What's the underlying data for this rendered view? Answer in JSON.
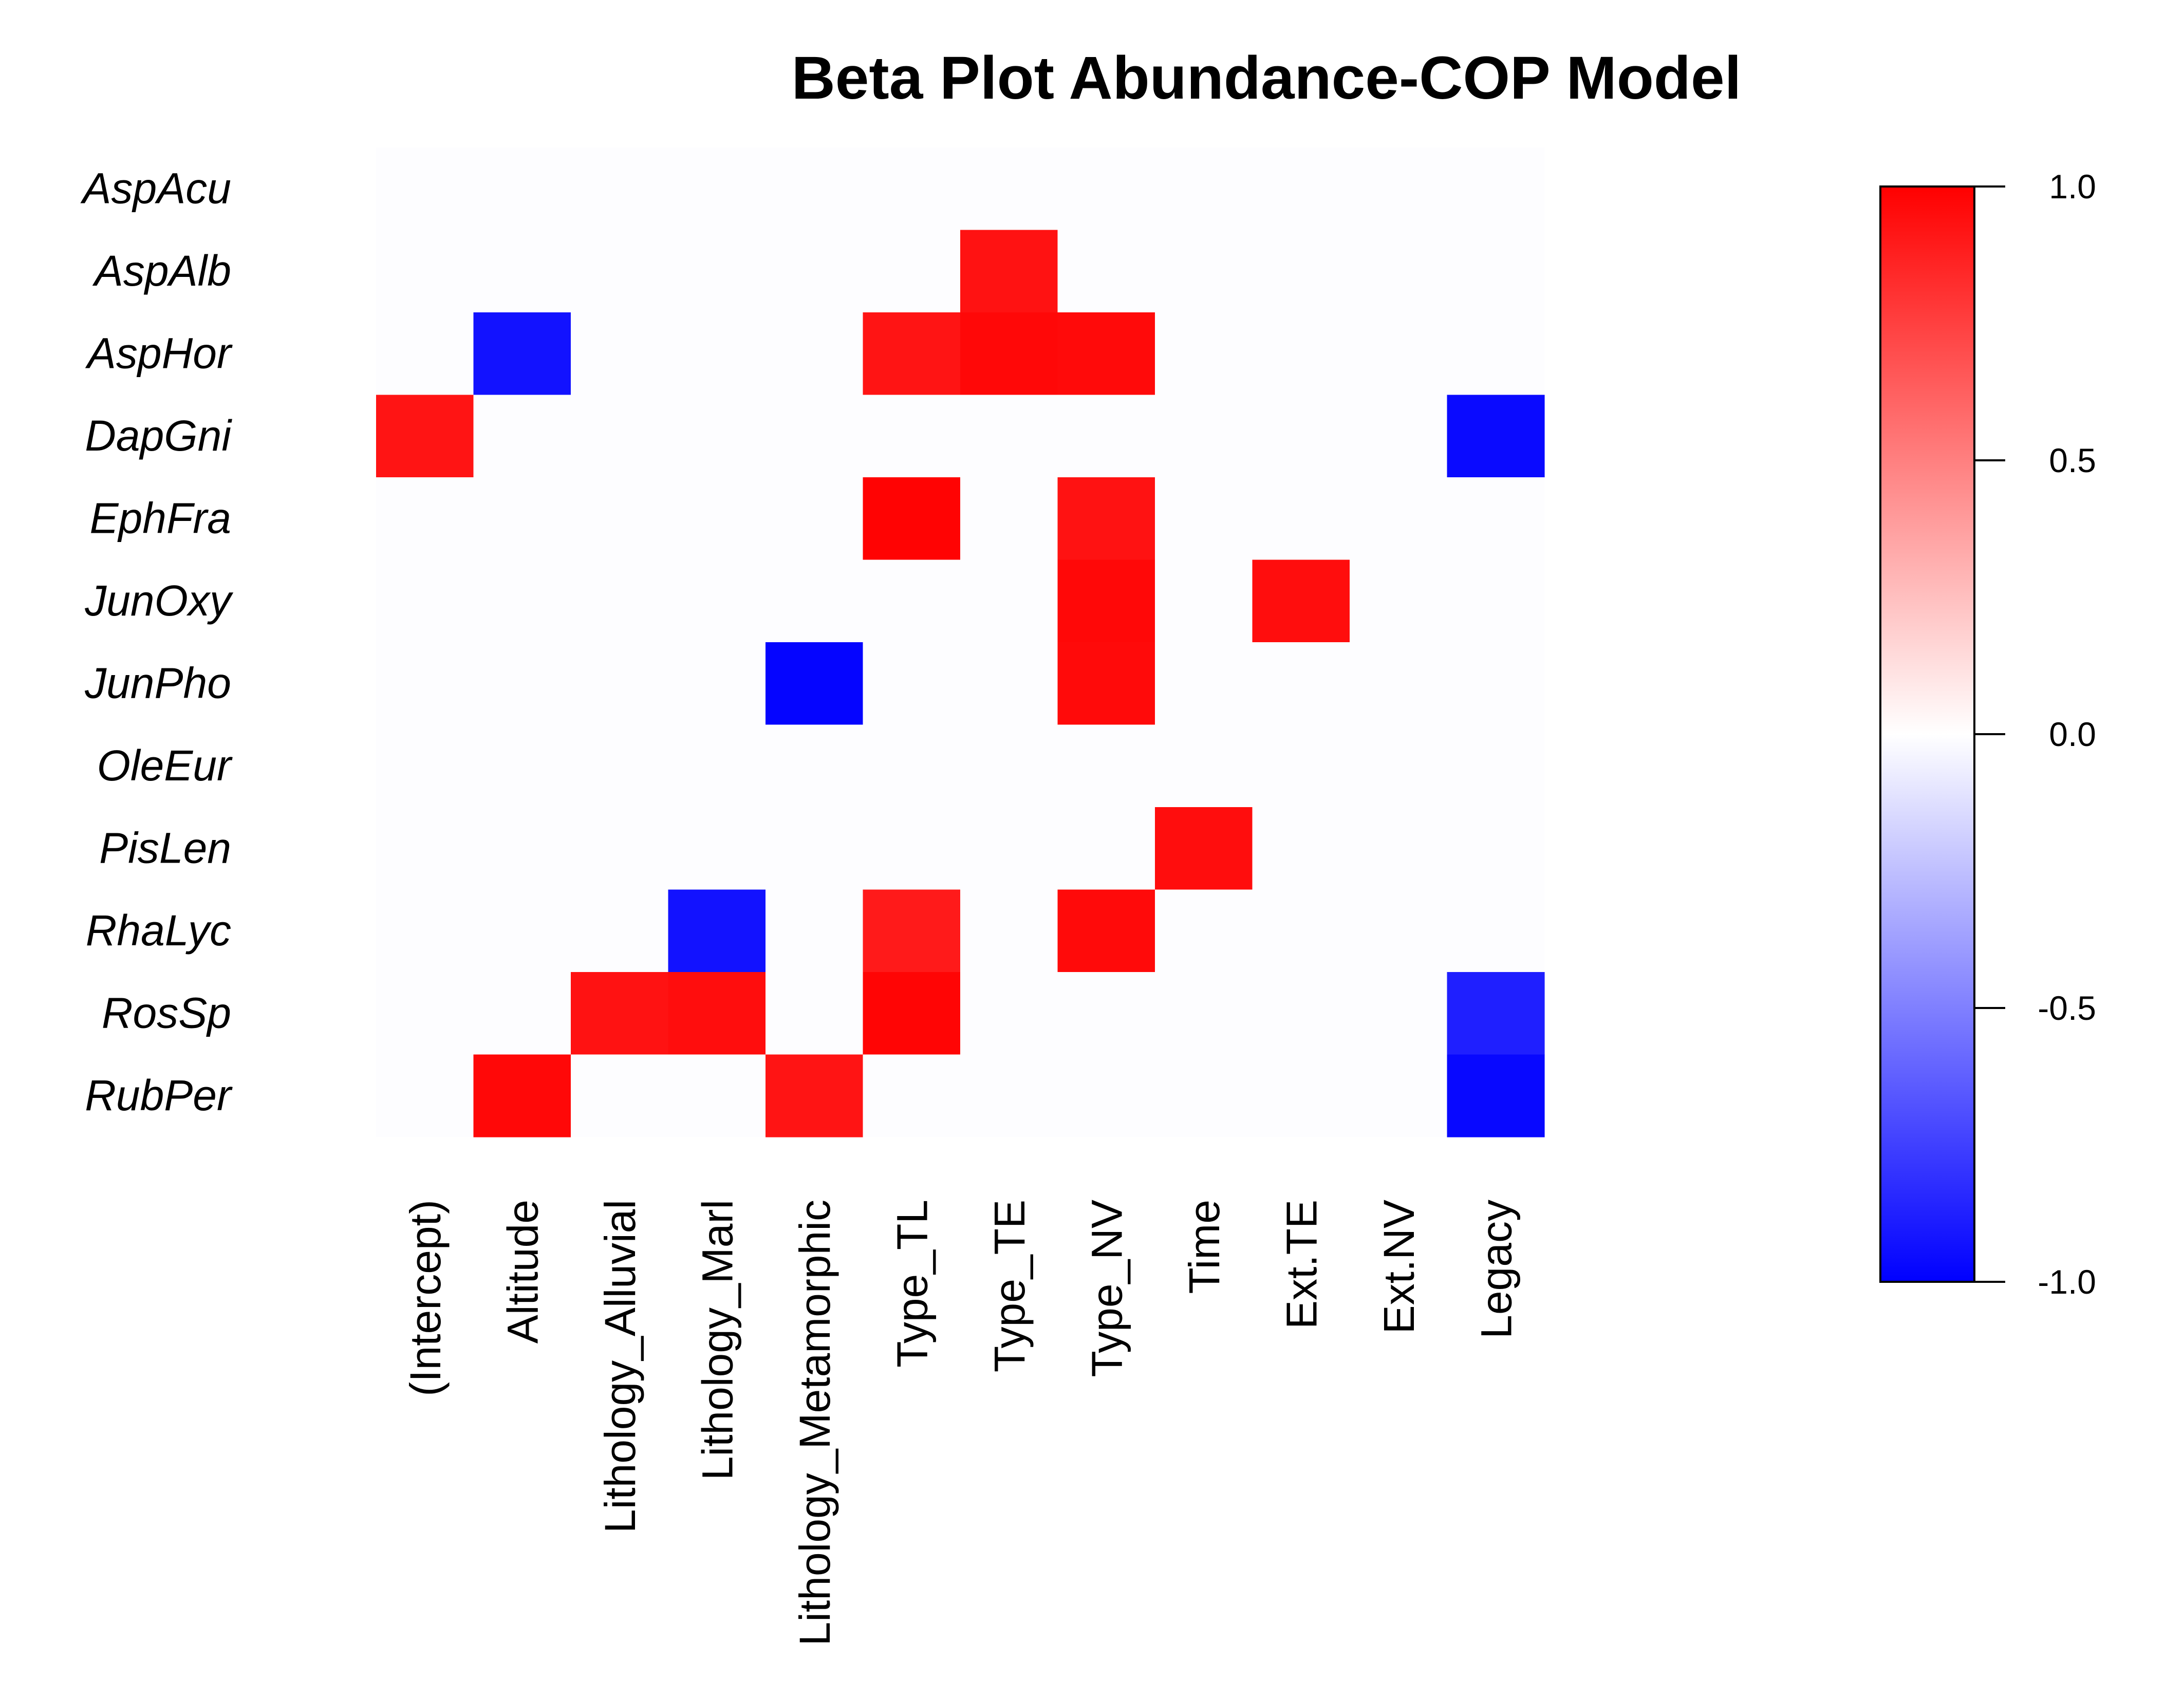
{
  "chart_data": {
    "type": "heatmap",
    "title": "Beta Plot Abundance-COP Model",
    "rows": [
      "AspAcu",
      "AspAlb",
      "AspHor",
      "DapGni",
      "EphFra",
      "JunOxy",
      "JunPho",
      "OleEur",
      "PisLen",
      "RhaLyc",
      "RosSp",
      "RubPer"
    ],
    "columns": [
      "(Intercept)",
      "Altitude",
      "Lithology_Alluvial",
      "Lithology_Marl",
      "Lithology_Metamorphic",
      "Type_TL",
      "Type_TE",
      "Type_NV",
      "Time",
      "Ext.TE",
      "Ext.NV",
      "Legacy"
    ],
    "values": [
      [
        0,
        0,
        0,
        0,
        0,
        0,
        0,
        0,
        0,
        0,
        0,
        0
      ],
      [
        0,
        0,
        0,
        0,
        0,
        0,
        0.93,
        0,
        0,
        0,
        0,
        0
      ],
      [
        0,
        -0.93,
        0,
        0,
        0,
        0.92,
        0.97,
        0.96,
        0,
        0,
        0,
        0
      ],
      [
        0.92,
        0,
        0,
        0,
        0,
        0,
        0,
        0,
        0,
        0,
        0,
        -0.96
      ],
      [
        0,
        0,
        0,
        0,
        0,
        0.99,
        0,
        0.93,
        0,
        0,
        0,
        0
      ],
      [
        0,
        0,
        0,
        0,
        0,
        0,
        0,
        0.97,
        0,
        0.95,
        0,
        0
      ],
      [
        0,
        0,
        0,
        0,
        -0.98,
        0,
        0,
        0.96,
        0,
        0,
        0,
        0
      ],
      [
        0,
        0,
        0,
        0,
        0,
        0,
        0,
        0,
        0,
        0,
        0,
        0
      ],
      [
        0,
        0,
        0,
        0,
        0,
        0,
        0,
        0,
        0.95,
        0,
        0,
        0
      ],
      [
        0,
        0,
        0,
        -0.93,
        0,
        0.9,
        0,
        0.96,
        0,
        0,
        0,
        0
      ],
      [
        0,
        0,
        0.93,
        0.95,
        0,
        0.98,
        0,
        0,
        0,
        0,
        0,
        -0.88
      ],
      [
        0,
        0.97,
        0,
        0,
        0.92,
        0,
        0,
        0,
        0,
        0,
        0,
        -0.97
      ]
    ],
    "zero_cell_color": "#fdfdff",
    "colorscale": {
      "low": "#0000ff",
      "mid": "#ffffff",
      "high": "#ff0000",
      "range": [
        -1,
        1
      ]
    },
    "colorbar": {
      "ticks": [
        1.0,
        0.5,
        0.0,
        -0.5,
        -1.0
      ],
      "tick_labels": [
        "1.0",
        "0.5",
        "0.0",
        "-0.5",
        "-1.0"
      ]
    },
    "legend_position": "right"
  }
}
